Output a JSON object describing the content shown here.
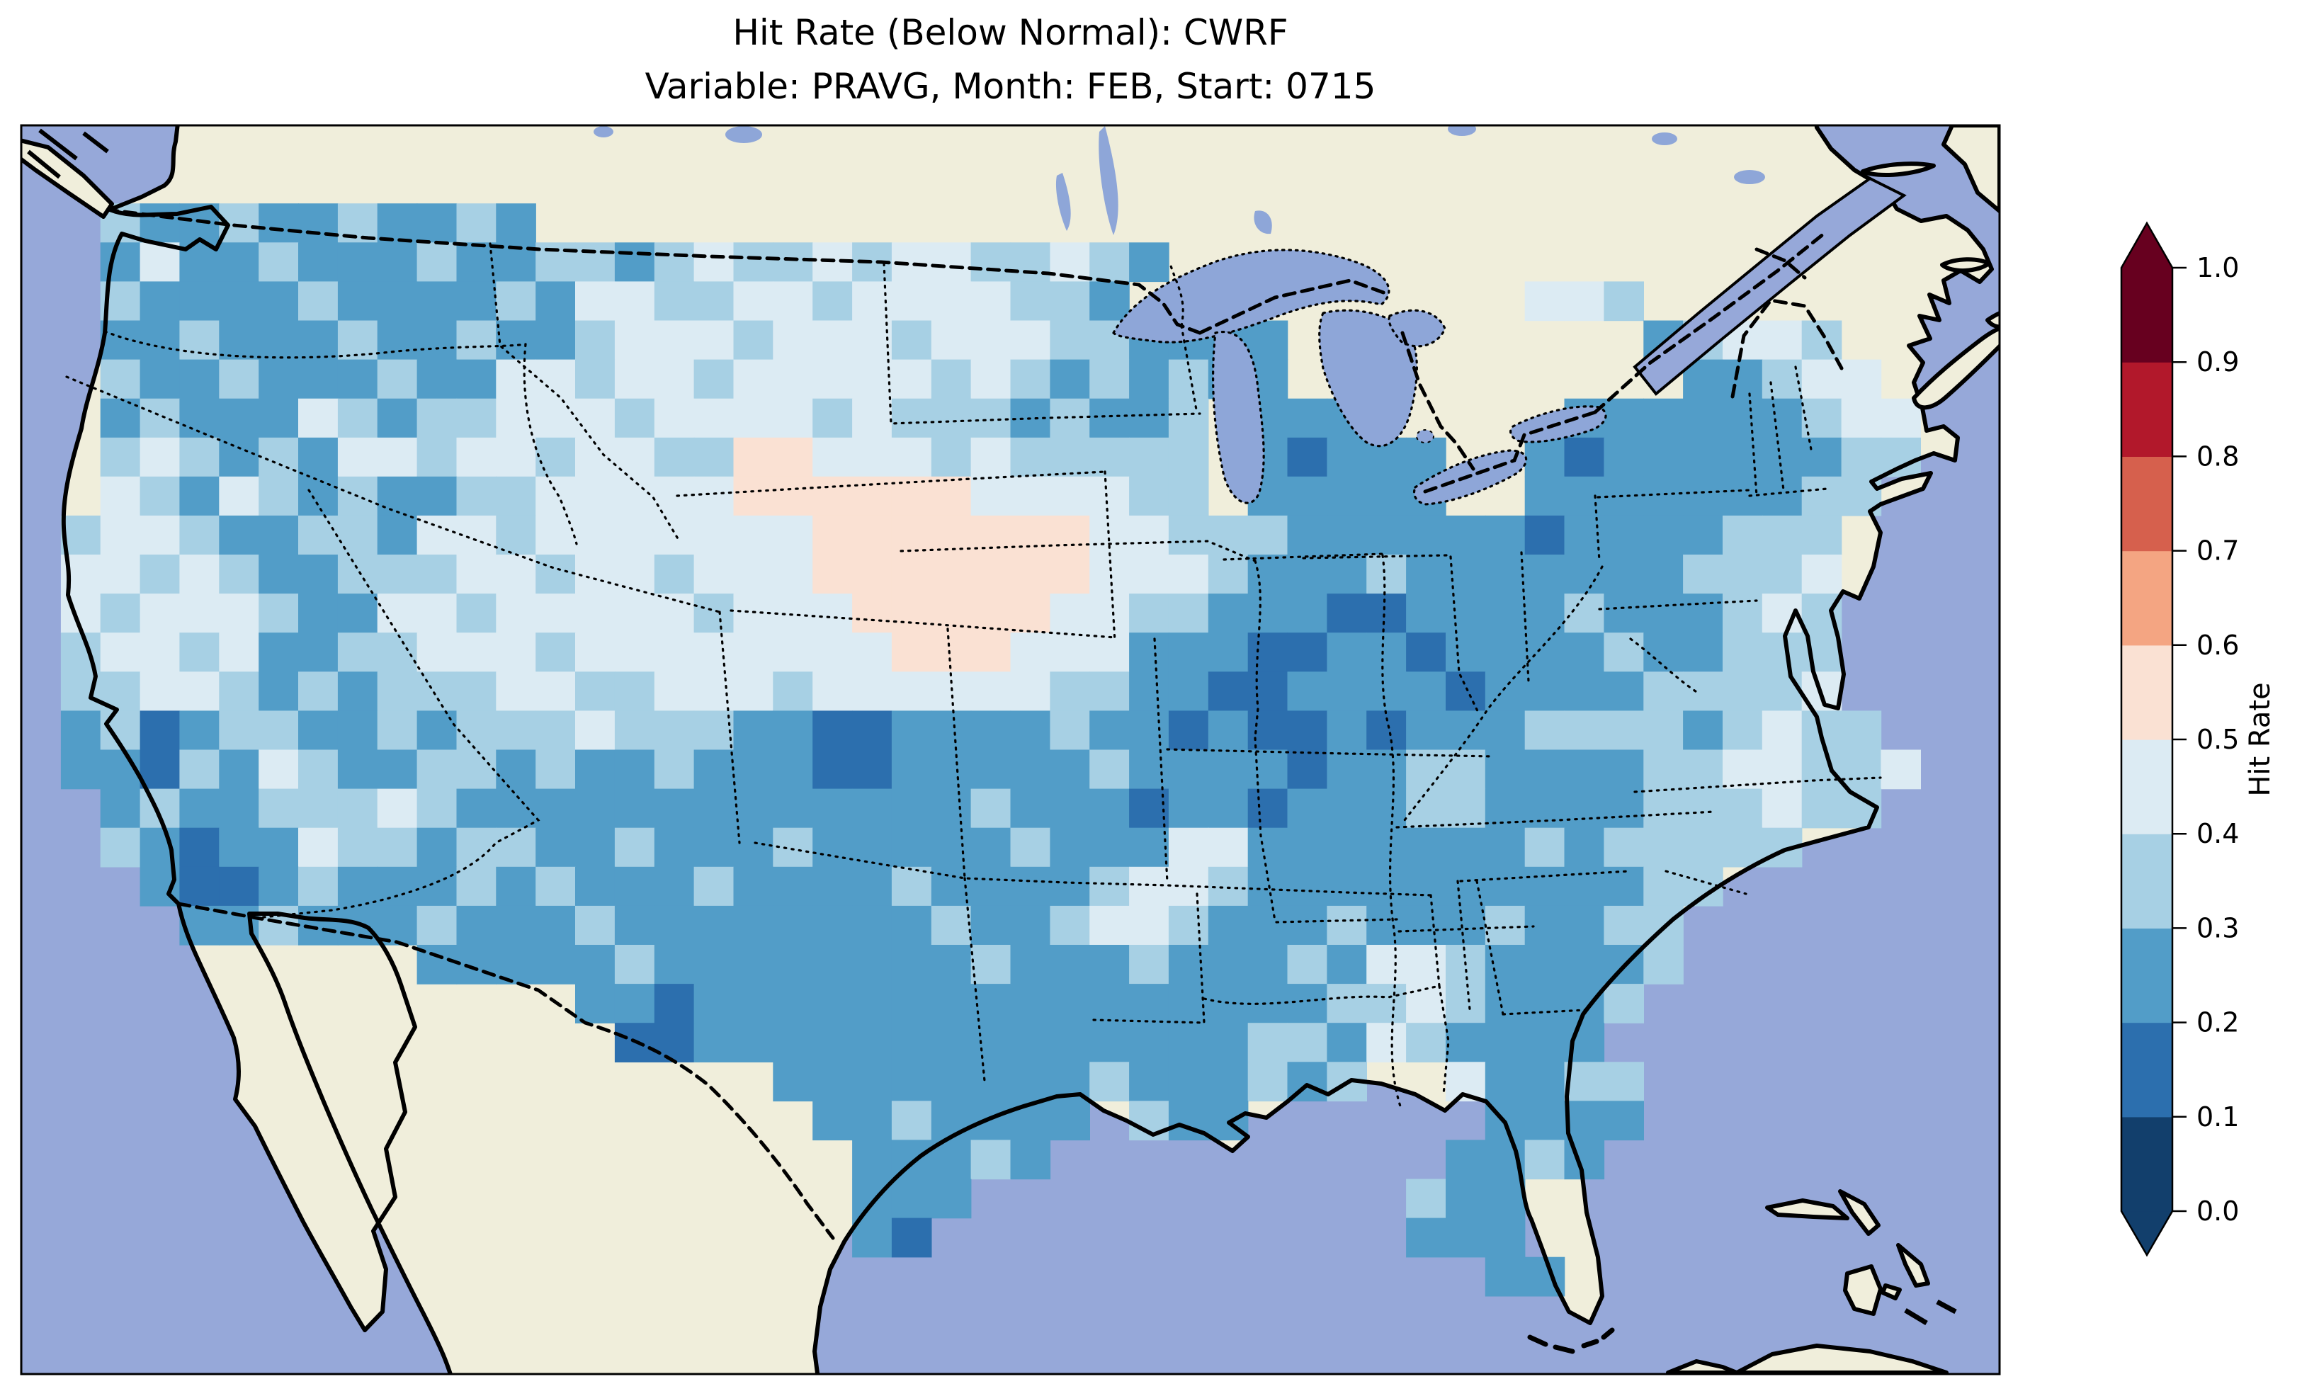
{
  "title": {
    "line1": "Hit Rate (Below Normal): CWRF",
    "line2": "Variable: PRAVG, Month: FEB, Start: 0715"
  },
  "colorbar": {
    "label": "Hit Rate",
    "tick_labels_top_to_bottom": [
      "1.0",
      "0.9",
      "0.8",
      "0.7",
      "0.6",
      "0.5",
      "0.4",
      "0.3",
      "0.2",
      "0.1",
      "0.0"
    ],
    "segment_colors_bottom_to_top": [
      "#123f6c",
      "#2c6fae",
      "#529dc8",
      "#a7d0e4",
      "#dcebf3",
      "#fae1d3",
      "#f4a582",
      "#d6604d",
      "#b2182b",
      "#67001f"
    ],
    "under_arrow_color": "#123f6c",
    "over_arrow_color": "#67001f"
  },
  "map_colors": {
    "ocean": "#96a8d9",
    "land": "#f0eedb",
    "lakes": "#8ea6d8",
    "coastline": "#000000"
  },
  "chart_data": {
    "type": "heatmap",
    "title": "Hit Rate (Below Normal): CWRF",
    "subtitle": "Variable: PRAVG, Month: FEB, Start: 0715",
    "model": "CWRF",
    "variable": "PRAVG",
    "month": "FEB",
    "start": "0715",
    "metric": "Hit Rate (Below Normal)",
    "region": "Contiguous United States",
    "colorbar_label": "Hit Rate",
    "value_range": [
      0.0,
      1.0
    ],
    "bin_edges": [
      0.0,
      0.1,
      0.2,
      0.3,
      0.4,
      0.5,
      0.6,
      0.7,
      0.8,
      0.9,
      1.0
    ],
    "value_buckets": {
      "1": "0.1-0.2",
      "2": "0.2-0.3",
      "3": "0.3-0.4",
      "4": "0.4-0.5",
      "5": "0.5-0.6"
    },
    "bucket_colors": {
      "1": "#2c6fae",
      "2": "#529dc8",
      "3": "#a7d0e4",
      "4": "#dcebf3",
      "5": "#fae1d3"
    },
    "grid": {
      "cols": 50,
      "rows": 32,
      "no_data_char": ".",
      "rows_top_to_bottom": [
        "..................................................",
        "..................................................",
        "..32232232232.....................................",
        "..242232223223323433434433432.....................",
        "..32222322223244334434444332..........443...",
        "..223222322322344434443444332222.........23443..",
        "..322322232244344344444343232322..........22344..",
        "..232224323344434444343332322 3.222.....222222344..",
        "..343232443443443355444343333 3.21222..2122222233..",
        "..432432322334444455555544443 3.22222..222222233...",
        ".3443223324434444444555555544333222222122 22333....",
        ".4434322333443443444555555544432223222222 23334....",
        ".4344432244344444344455555443322211222232 22343....",
        ".3443422334443444444445554442221122122223 22333....",
        ".3344323233344334443444444332211222212222 33334....",
        ".2312332232333433322112222322121121222333 323433...",
        ".2213243223323223222112222232222122332222 3344334..",
        "..232233343222222222222232221221222332222 333433...",
        "..321224332332232223222223222442222222323 3333.....",
        "...21123222323222322223222234432222222222 33.......",
        "....2232223222322222222322344322232223223 3........",
        "..........2222232222222232223222324432222 3........",
        "..............221222222222222222233432223 .........",
        "...............11222222222222223324322 22..........",
        "...................22222222322232 3..42233.........",
        "....................2232222.322......2222.........",
        ".....................22232..........223 2..........",
        ".....................222...........322............",
        ".....................21............222............",
        ".....................................22...........",
        "..................................................",
        ".................................................."
      ]
    },
    "notes": "CONUS hit rates are mostly 0.2-0.5 (blues); a 0.5-0.6 (pale pink) patch covers the NE/SD/IA plains; no cell exceeds 0.7."
  }
}
